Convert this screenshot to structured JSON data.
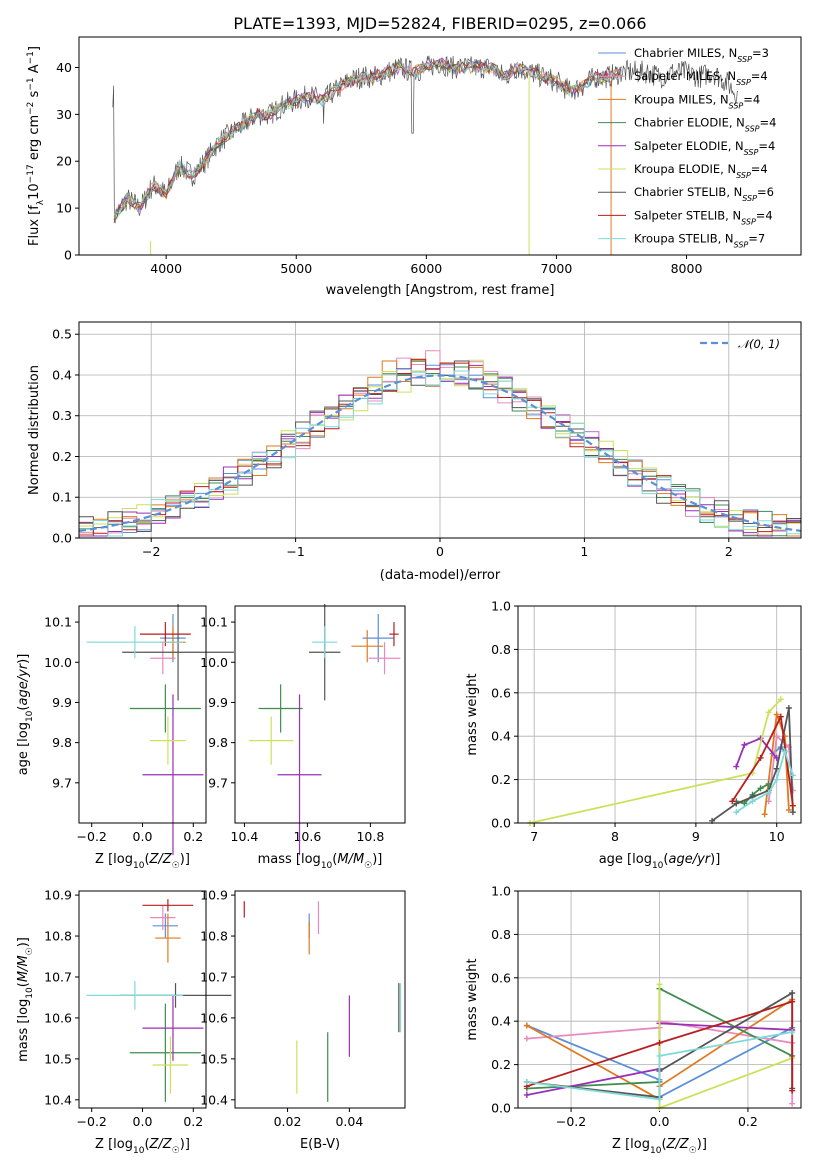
{
  "title": "PLATE=1393, MJD=52824, FIBERID=0295, z=0.066",
  "colors": [
    "#5b8fd9",
    "#e68ac0",
    "#e07a1f",
    "#3e8c50",
    "#9a2fb8",
    "#cde05a",
    "#555555",
    "#b81f1f",
    "#7fd9d9"
  ],
  "models": [
    {
      "name": "Chabrier MILES",
      "nssp": "3"
    },
    {
      "name": "Salpeter MILES",
      "nssp": "4"
    },
    {
      "name": "Kroupa MILES",
      "nssp": "4"
    },
    {
      "name": "Chabrier ELODIE",
      "nssp": "4"
    },
    {
      "name": "Salpeter ELODIE",
      "nssp": "4"
    },
    {
      "name": "Kroupa ELODIE",
      "nssp": "4"
    },
    {
      "name": "Chabrier STELIB",
      "nssp": "6"
    },
    {
      "name": "Salpeter STELIB",
      "nssp": "4"
    },
    {
      "name": "Kroupa STELIB",
      "nssp": "7"
    }
  ],
  "chart_data": [
    {
      "id": "spectrum",
      "type": "line",
      "xlabel": "wavelength [Angstrom, rest frame]",
      "ylabel": "Flux [f_λ10^-17 erg cm^-2 s^-1 A^-1]",
      "xlim": [
        3330,
        8880
      ],
      "ylim": [
        0,
        46.5
      ],
      "xticks": [
        4000,
        5000,
        6000,
        7000,
        8000
      ],
      "yticks": [
        0,
        10,
        20,
        30,
        40
      ],
      "grid": false,
      "legend": "right",
      "observed_color": "#555555",
      "spectrum_points": [
        [
          3600,
          8
        ],
        [
          3700,
          12
        ],
        [
          3800,
          10
        ],
        [
          3900,
          15
        ],
        [
          4000,
          13
        ],
        [
          4100,
          19
        ],
        [
          4200,
          17
        ],
        [
          4300,
          20
        ],
        [
          4400,
          24
        ],
        [
          4500,
          26
        ],
        [
          4600,
          28
        ],
        [
          4700,
          30
        ],
        [
          4800,
          30
        ],
        [
          4900,
          32
        ],
        [
          5000,
          33
        ],
        [
          5100,
          34
        ],
        [
          5200,
          33
        ],
        [
          5300,
          35
        ],
        [
          5400,
          37
        ],
        [
          5500,
          38
        ],
        [
          5600,
          38
        ],
        [
          5700,
          39
        ],
        [
          5800,
          40
        ],
        [
          5900,
          39
        ],
        [
          6000,
          40
        ],
        [
          6100,
          41
        ],
        [
          6200,
          40
        ],
        [
          6300,
          40
        ],
        [
          6400,
          40
        ],
        [
          6500,
          40
        ],
        [
          6600,
          38
        ],
        [
          6700,
          40
        ],
        [
          6800,
          39
        ],
        [
          6900,
          38
        ],
        [
          7000,
          37
        ],
        [
          7100,
          35
        ],
        [
          7200,
          36
        ],
        [
          7300,
          38
        ],
        [
          7400,
          38
        ],
        [
          7500,
          39
        ],
        [
          7600,
          39
        ],
        [
          7700,
          39
        ],
        [
          7800,
          38
        ],
        [
          7900,
          39
        ],
        [
          8000,
          39
        ],
        [
          8100,
          38
        ],
        [
          8200,
          39
        ],
        [
          8300,
          37
        ],
        [
          8400,
          34
        ]
      ],
      "model_extent": [
        3600,
        7500,
        7420,
        3600,
        3600,
        3600,
        3600,
        3600,
        3600
      ]
    },
    {
      "id": "residuals",
      "type": "histogram",
      "xlabel": "(data-model)/error",
      "ylabel": "Normed distribution",
      "xlim": [
        -2.5,
        2.5
      ],
      "ylim": [
        0,
        0.53
      ],
      "xticks": [
        -2,
        -1,
        0,
        1,
        2
      ],
      "xtick_labels": [
        "−2",
        "−1",
        "0",
        "1",
        "2"
      ],
      "yticks": [
        0,
        0.1,
        0.2,
        0.3,
        0.4,
        0.5
      ],
      "ytick_labels": [
        "0.0",
        "0.1",
        "0.2",
        "0.3",
        "0.4",
        "0.5"
      ],
      "grid": true,
      "reference_curve": {
        "label": "𝒩(0, 1)",
        "mean": 0,
        "sigma": 1,
        "color": "#5b8fd9"
      }
    },
    {
      "id": "age-vs-Z",
      "type": "errorbar",
      "xlabel": "Z [log₁₀(Z/Z☉)]",
      "ylabel": "age  [log₁₀(age/yr)]",
      "xlim": [
        -0.25,
        0.25
      ],
      "ylim": [
        9.6,
        10.14
      ],
      "xticks": [
        -0.2,
        0.0,
        0.2
      ],
      "xtick_labels": [
        "−0.2",
        "0.0",
        "0.2"
      ],
      "yticks": [
        9.7,
        9.8,
        9.9,
        10.0,
        10.1
      ],
      "ytick_labels": [
        "9.7",
        "9.8",
        "9.9",
        "10.0",
        "10.1"
      ],
      "points": [
        {
          "x": 0.12,
          "xerr": 0.05,
          "y": 10.06,
          "yerr": 0.06
        },
        {
          "x": 0.08,
          "xerr": 0.05,
          "y": 10.01,
          "yerr": 0.04
        },
        {
          "x": 0.12,
          "xerr": 0.05,
          "y": 10.05,
          "yerr": 0.04
        },
        {
          "x": 0.09,
          "xerr": 0.14,
          "y": 9.885,
          "yerr": 0.06
        },
        {
          "x": 0.12,
          "xerr": 0.12,
          "y": 9.72,
          "yerr": 0.2
        },
        {
          "x": 0.1,
          "xerr": 0.07,
          "y": 9.805,
          "yerr": 0.06
        },
        {
          "x": 0.14,
          "xerr": 0.22,
          "y": 10.025,
          "yerr": 0.12
        },
        {
          "x": 0.09,
          "xerr": 0.1,
          "y": 10.07,
          "yerr": 0.03
        },
        {
          "x": -0.03,
          "xerr": 0.19,
          "y": 10.05,
          "yerr": 0.04
        }
      ]
    },
    {
      "id": "age-vs-mass",
      "type": "errorbar",
      "xlabel": "mass [log₁₀(M/M☉)]",
      "ylabel": "",
      "xlim": [
        10.37,
        10.91
      ],
      "ylim": [
        9.6,
        10.14
      ],
      "xticks": [
        10.4,
        10.6,
        10.8
      ],
      "xtick_labels": [
        "10.4",
        "10.6",
        "10.8"
      ],
      "yticks": [
        9.7,
        9.8,
        9.9,
        10.0,
        10.1
      ],
      "ytick_labels": [
        "9.7",
        "9.8",
        "9.9",
        "10.0",
        "10.1"
      ],
      "points": [
        {
          "x": 10.825,
          "xerr": 0.05,
          "y": 10.06,
          "yerr": 0.06
        },
        {
          "x": 10.845,
          "xerr": 0.05,
          "y": 10.01,
          "yerr": 0.04
        },
        {
          "x": 10.79,
          "xerr": 0.05,
          "y": 10.04,
          "yerr": 0.04
        },
        {
          "x": 10.515,
          "xerr": 0.07,
          "y": 9.885,
          "yerr": 0.06
        },
        {
          "x": 10.575,
          "xerr": 0.07,
          "y": 9.72,
          "yerr": 0.2
        },
        {
          "x": 10.485,
          "xerr": 0.07,
          "y": 9.805,
          "yerr": 0.06
        },
        {
          "x": 10.655,
          "xerr": 0.05,
          "y": 10.025,
          "yerr": 0.12
        },
        {
          "x": 10.875,
          "xerr": 0.015,
          "y": 10.07,
          "yerr": 0.03
        },
        {
          "x": 10.655,
          "xerr": 0.04,
          "y": 10.05,
          "yerr": 0.04
        }
      ]
    },
    {
      "id": "weight-vs-age",
      "type": "line",
      "xlabel": "age  [log₁₀(age/yr)]",
      "ylabel": "mass weight",
      "xlim": [
        6.8,
        10.3
      ],
      "ylim": [
        0,
        1.0
      ],
      "xticks": [
        7,
        8,
        9,
        10
      ],
      "xtick_labels": [
        "7",
        "8",
        "9",
        "10"
      ],
      "yticks": [
        0,
        0.2,
        0.4,
        0.6,
        0.8,
        1.0
      ],
      "ytick_labels": [
        "0.0",
        "0.2",
        "0.4",
        "0.6",
        "0.8",
        "1.0"
      ],
      "grid": true,
      "series": [
        {
          "x": [
            9.95,
            10.05,
            10.1
          ],
          "y": [
            0.32,
            0.35,
            0.33
          ]
        },
        {
          "x": [
            9.9,
            10.0,
            10.15,
            10.2
          ],
          "y": [
            0.1,
            0.4,
            0.35,
            0.15
          ]
        },
        {
          "x": [
            9.85,
            10.0,
            10.1,
            10.15
          ],
          "y": [
            0.04,
            0.5,
            0.4,
            0.06
          ]
        },
        {
          "x": [
            9.5,
            9.6,
            9.7,
            9.8,
            9.9
          ],
          "y": [
            0.1,
            0.09,
            0.13,
            0.16,
            0.18
          ]
        },
        {
          "x": [
            9.5,
            9.6,
            9.8,
            10.0
          ],
          "y": [
            0.26,
            0.36,
            0.39,
            0.3
          ]
        },
        {
          "x": [
            6.95,
            9.7,
            9.9,
            10.05
          ],
          "y": [
            0.0,
            0.23,
            0.51,
            0.57
          ]
        },
        {
          "x": [
            9.2,
            9.5,
            9.7,
            9.9,
            10.0,
            10.15,
            10.2
          ],
          "y": [
            0.01,
            0.09,
            0.12,
            0.15,
            0.25,
            0.53,
            0.05
          ]
        },
        {
          "x": [
            9.45,
            9.8,
            10.05,
            10.2
          ],
          "y": [
            0.1,
            0.3,
            0.49,
            0.08
          ]
        },
        {
          "x": [
            9.5,
            9.7,
            9.9,
            10.0,
            10.1,
            10.2
          ],
          "y": [
            0.05,
            0.1,
            0.14,
            0.2,
            0.33,
            0.22
          ]
        }
      ]
    },
    {
      "id": "mass-vs-Z",
      "type": "errorbar",
      "xlabel": "Z [log₁₀(Z/Z☉)]",
      "ylabel": "mass [log₁₀(M/M☉)]",
      "xlim": [
        -0.25,
        0.25
      ],
      "ylim": [
        10.38,
        10.91
      ],
      "xticks": [
        -0.2,
        0.0,
        0.2
      ],
      "xtick_labels": [
        "−0.2",
        "0.0",
        "0.2"
      ],
      "yticks": [
        10.4,
        10.5,
        10.6,
        10.7,
        10.8,
        10.9
      ],
      "ytick_labels": [
        "10.4",
        "10.5",
        "10.6",
        "10.7",
        "10.8",
        "10.9"
      ],
      "points": [
        {
          "x": 0.09,
          "xerr": 0.05,
          "y": 10.825,
          "yerr": 0.03
        },
        {
          "x": 0.08,
          "xerr": 0.05,
          "y": 10.845,
          "yerr": 0.03
        },
        {
          "x": 0.1,
          "xerr": 0.05,
          "y": 10.795,
          "yerr": 0.06
        },
        {
          "x": 0.09,
          "xerr": 0.14,
          "y": 10.515,
          "yerr": 0.12
        },
        {
          "x": 0.12,
          "xerr": 0.12,
          "y": 10.575,
          "yerr": 0.08
        },
        {
          "x": 0.11,
          "xerr": 0.07,
          "y": 10.485,
          "yerr": 0.07
        },
        {
          "x": 0.13,
          "xerr": 0.22,
          "y": 10.655,
          "yerr": 0.03
        },
        {
          "x": 0.1,
          "xerr": 0.1,
          "y": 10.875,
          "yerr": 0.015
        },
        {
          "x": -0.03,
          "xerr": 0.19,
          "y": 10.655,
          "yerr": 0.035
        }
      ]
    },
    {
      "id": "mass-vs-ebv",
      "type": "errorbar",
      "xlabel": "E(B-V)",
      "ylabel": "",
      "xlim": [
        0.003,
        0.058
      ],
      "ylim": [
        10.38,
        10.91
      ],
      "xticks": [
        0.02,
        0.04
      ],
      "xtick_labels": [
        "0.02",
        "0.04"
      ],
      "yticks": [
        10.4,
        10.5,
        10.6,
        10.7,
        10.8,
        10.9
      ],
      "ytick_labels": [
        "10.4",
        "10.5",
        "10.6",
        "10.7",
        "10.8",
        "10.9"
      ],
      "points": [
        {
          "x": 0.027,
          "xerr": 0,
          "y": 10.825,
          "yerr": 0.03
        },
        {
          "x": 0.03,
          "xerr": 0,
          "y": 10.845,
          "yerr": 0.04
        },
        {
          "x": 0.027,
          "xerr": 0,
          "y": 10.795,
          "yerr": 0.04
        },
        {
          "x": 0.033,
          "xerr": 0,
          "y": 10.48,
          "yerr": 0.085
        },
        {
          "x": 0.04,
          "xerr": 0,
          "y": 10.58,
          "yerr": 0.075
        },
        {
          "x": 0.023,
          "xerr": 0,
          "y": 10.48,
          "yerr": 0.065
        },
        {
          "x": 0.056,
          "xerr": 0,
          "y": 10.625,
          "yerr": 0.06
        },
        {
          "x": 0.006,
          "xerr": 0,
          "y": 10.865,
          "yerr": 0.02
        },
        {
          "x": 0.0565,
          "xerr": 0,
          "y": 10.625,
          "yerr": 0.06
        }
      ]
    },
    {
      "id": "weight-vs-Z",
      "type": "line",
      "xlabel": "Z [log₁₀(Z/Z☉)]",
      "ylabel": "mass weight",
      "xlim": [
        -0.32,
        0.32
      ],
      "ylim": [
        0,
        1.0
      ],
      "xticks": [
        -0.2,
        0.0,
        0.2
      ],
      "xtick_labels": [
        "−0.2",
        "0.0",
        "0.2"
      ],
      "yticks": [
        0,
        0.2,
        0.4,
        0.6,
        0.8,
        1.0
      ],
      "ytick_labels": [
        "0.0",
        "0.2",
        "0.4",
        "0.6",
        "0.8",
        "1.0"
      ],
      "grid": true,
      "series": [
        {
          "x": [
            -0.3,
            0.0,
            0.0,
            0.3
          ],
          "y": [
            0.38,
            0.13,
            0.05,
            0.37
          ]
        },
        {
          "x": [
            -0.3,
            0.0,
            0.0,
            0.3,
            0.3
          ],
          "y": [
            0.32,
            0.37,
            0.4,
            0.3,
            0.02
          ]
        },
        {
          "x": [
            -0.3,
            0.0,
            0.0,
            0.3
          ],
          "y": [
            0.38,
            0.04,
            0.1,
            0.5
          ]
        },
        {
          "x": [
            -0.3,
            0.0,
            0.0,
            0.3
          ],
          "y": [
            0.09,
            0.12,
            0.55,
            0.24
          ]
        },
        {
          "x": [
            -0.3,
            0.0,
            0.0,
            0.3
          ],
          "y": [
            0.06,
            0.18,
            0.39,
            0.36
          ]
        },
        {
          "x": [
            0.0,
            0.0,
            0.3
          ],
          "y": [
            0.57,
            0.0,
            0.23
          ]
        },
        {
          "x": [
            -0.3,
            0.0,
            0.0,
            0.3,
            0.3
          ],
          "y": [
            0.12,
            0.05,
            0.17,
            0.53,
            0.09
          ]
        },
        {
          "x": [
            -0.3,
            0.0,
            0.3,
            0.3
          ],
          "y": [
            0.1,
            0.3,
            0.49,
            0.08
          ]
        },
        {
          "x": [
            -0.3,
            0.0,
            0.0,
            0.3
          ],
          "y": [
            0.12,
            0.04,
            0.24,
            0.35
          ]
        }
      ]
    }
  ]
}
